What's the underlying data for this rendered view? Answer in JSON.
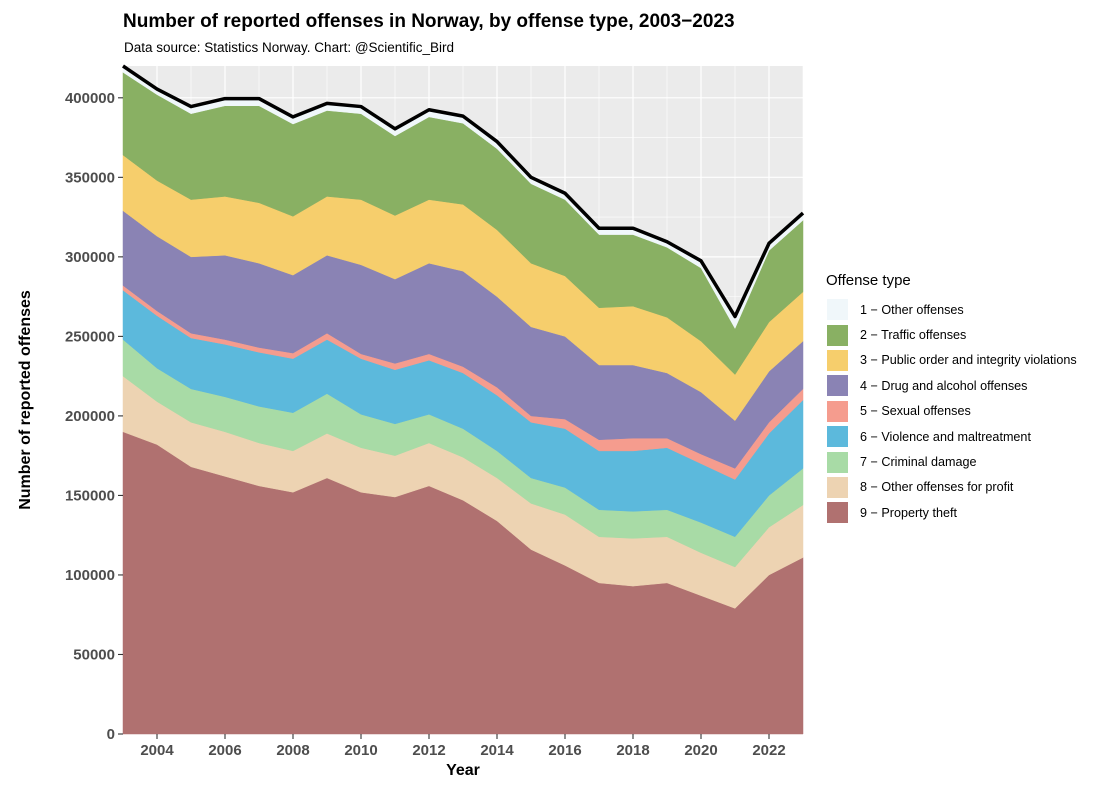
{
  "title": "Number of reported offenses in Norway, by offense type, 2003−2023",
  "subtitle": "Data source: Statistics Norway. Chart: @Scientific_Bird",
  "chart_data": {
    "type": "area",
    "stacked": true,
    "xlabel": "Year",
    "ylabel": "Number of reported offenses",
    "xlim": [
      2003,
      2023
    ],
    "ylim": [
      0,
      420000
    ],
    "x_ticks": [
      2004,
      2006,
      2008,
      2010,
      2012,
      2014,
      2016,
      2018,
      2020,
      2022
    ],
    "y_ticks": [
      0,
      50000,
      100000,
      150000,
      200000,
      250000,
      300000,
      350000,
      400000
    ],
    "grid": true,
    "legend_position": "right",
    "legend_title": "Offense type",
    "x": [
      2003,
      2004,
      2005,
      2006,
      2007,
      2008,
      2009,
      2010,
      2011,
      2012,
      2013,
      2014,
      2015,
      2016,
      2017,
      2018,
      2019,
      2020,
      2021,
      2022,
      2023
    ],
    "series": [
      {
        "name": "1 − Other offenses",
        "color": "#f0f7fa",
        "values": [
          4000,
          3500,
          4500,
          4500,
          4500,
          4500,
          4500,
          4500,
          4500,
          4500,
          4500,
          4500,
          4000,
          4000,
          4000,
          4000,
          3500,
          4500,
          7500,
          4500,
          4500
        ]
      },
      {
        "name": "2 − Traffic offenses",
        "color": "#89b063",
        "values": [
          52000,
          54000,
          54000,
          57000,
          61000,
          58000,
          54000,
          54000,
          50000,
          52000,
          51000,
          51000,
          50000,
          48000,
          46000,
          45000,
          44000,
          46000,
          29000,
          45000,
          45000
        ]
      },
      {
        "name": "3 − Public order and integrity violations",
        "color": "#f6ce6c",
        "values": [
          35000,
          35000,
          36000,
          37000,
          38000,
          37000,
          37000,
          41000,
          40000,
          40000,
          42000,
          42000,
          40000,
          38000,
          36000,
          37000,
          35000,
          32000,
          29000,
          31000,
          31000
        ]
      },
      {
        "name": "4 − Drug and alcohol offenses",
        "color": "#8a83b4",
        "values": [
          47000,
          47000,
          48000,
          53000,
          53000,
          49000,
          49000,
          56000,
          53000,
          57000,
          60000,
          57000,
          56000,
          52000,
          47000,
          46000,
          41000,
          39000,
          30000,
          32000,
          30000
        ]
      },
      {
        "name": "5 − Sexual offenses",
        "color": "#f59c8e",
        "values": [
          3000,
          3000,
          3000,
          3000,
          3000,
          3500,
          4000,
          3000,
          4000,
          4000,
          4000,
          5000,
          4000,
          6000,
          7000,
          8000,
          6000,
          6000,
          7000,
          7000,
          7000
        ]
      },
      {
        "name": "6 − Violence and maltreatment",
        "color": "#5cb9dc",
        "values": [
          31000,
          33000,
          32000,
          33000,
          34000,
          34000,
          34000,
          35000,
          34000,
          34000,
          35000,
          35000,
          35000,
          37000,
          37000,
          38000,
          39000,
          37000,
          36000,
          39000,
          43000
        ]
      },
      {
        "name": "7 − Criminal damage",
        "color": "#a8dba6",
        "values": [
          23000,
          21000,
          21000,
          22000,
          23000,
          24000,
          25000,
          21000,
          20000,
          18000,
          18000,
          17000,
          16000,
          17000,
          17000,
          17000,
          17000,
          19000,
          19000,
          20000,
          23000
        ]
      },
      {
        "name": "8 − Other offenses for profit",
        "color": "#edd3b2",
        "values": [
          35000,
          27000,
          28000,
          28000,
          27000,
          26000,
          28000,
          28000,
          26000,
          27000,
          27000,
          27000,
          29000,
          32000,
          29000,
          30000,
          29000,
          27000,
          26000,
          30000,
          33000
        ]
      },
      {
        "name": "9 − Property theft",
        "color": "#b07170",
        "values": [
          190000,
          182000,
          168000,
          162000,
          156000,
          152000,
          161000,
          152000,
          149000,
          156000,
          147000,
          134000,
          116000,
          106000,
          95000,
          93000,
          95000,
          87000,
          79000,
          100000,
          111000
        ]
      }
    ],
    "total_line": {
      "color": "#000000"
    }
  }
}
